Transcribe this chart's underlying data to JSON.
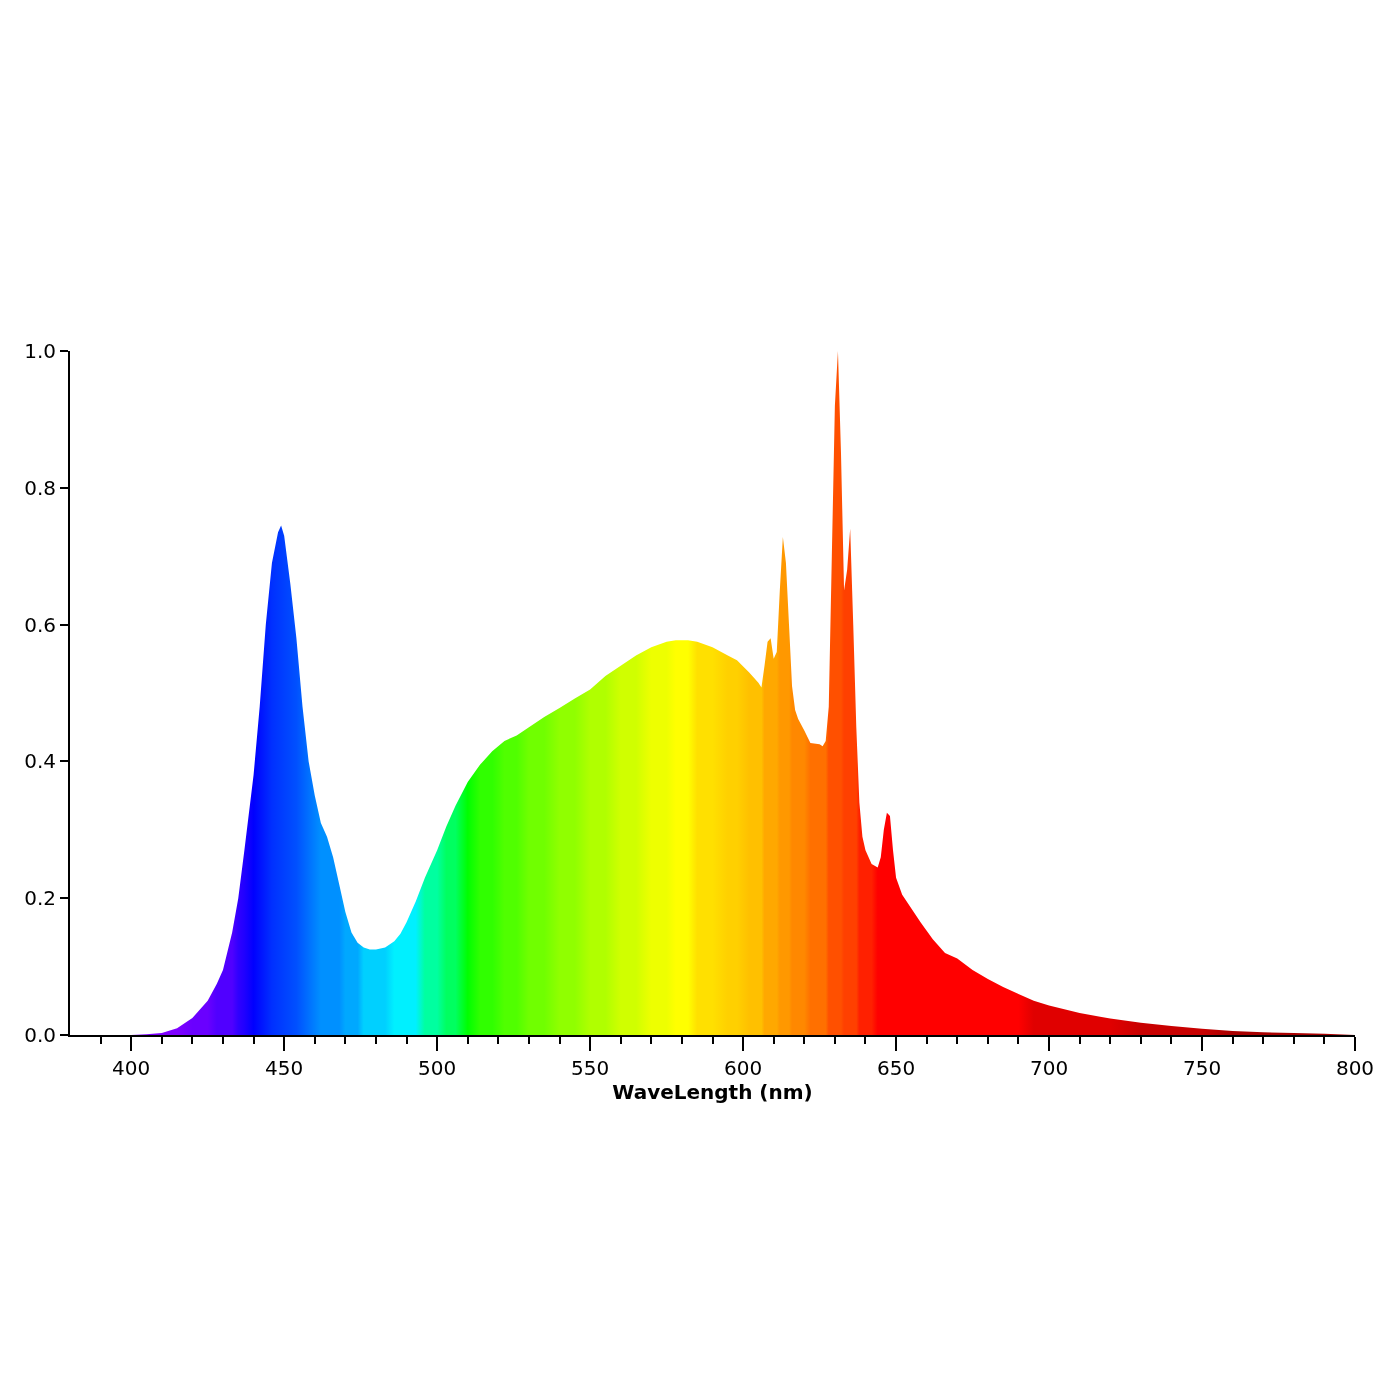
{
  "chart_data": {
    "type": "area",
    "xlabel": "WaveLength (nm)",
    "series": [
      {
        "x": [
          380,
          400,
          405,
          410,
          415,
          420,
          425,
          428,
          430,
          433,
          435,
          437,
          440,
          442,
          444,
          446,
          448,
          449,
          450,
          452,
          454,
          456,
          458,
          460,
          462,
          464,
          466,
          468,
          470,
          472,
          474,
          476,
          478,
          480,
          483,
          486,
          488,
          490,
          493,
          496,
          500,
          503,
          506,
          510,
          514,
          518,
          522,
          526,
          530,
          535,
          540,
          545,
          550,
          555,
          560,
          565,
          570,
          575,
          578,
          582,
          585,
          590,
          595,
          598,
          602,
          605,
          606,
          607,
          608,
          609,
          610,
          611,
          612,
          613,
          614,
          615,
          616,
          617,
          618,
          620,
          622,
          625,
          626,
          627,
          628,
          629,
          630,
          631,
          632,
          633,
          634,
          635,
          636,
          637,
          638,
          639,
          640,
          642,
          644,
          645,
          646,
          647,
          648,
          649,
          650,
          652,
          655,
          658,
          662,
          666,
          670,
          675,
          680,
          685,
          690,
          695,
          700,
          710,
          720,
          730,
          740,
          750,
          760,
          770,
          780,
          790,
          800
        ],
        "values": [
          0,
          0,
          0.001,
          0.003,
          0.01,
          0.025,
          0.05,
          0.075,
          0.095,
          0.15,
          0.2,
          0.27,
          0.38,
          0.48,
          0.6,
          0.69,
          0.735,
          0.745,
          0.73,
          0.66,
          0.58,
          0.48,
          0.4,
          0.35,
          0.31,
          0.29,
          0.26,
          0.22,
          0.18,
          0.15,
          0.135,
          0.128,
          0.125,
          0.125,
          0.128,
          0.137,
          0.148,
          0.165,
          0.195,
          0.23,
          0.27,
          0.305,
          0.335,
          0.37,
          0.395,
          0.415,
          0.43,
          0.438,
          0.45,
          0.465,
          0.478,
          0.492,
          0.505,
          0.525,
          0.54,
          0.555,
          0.567,
          0.575,
          0.577,
          0.577,
          0.575,
          0.567,
          0.555,
          0.548,
          0.53,
          0.515,
          0.508,
          0.54,
          0.575,
          0.58,
          0.55,
          0.56,
          0.65,
          0.728,
          0.69,
          0.6,
          0.51,
          0.475,
          0.462,
          0.445,
          0.427,
          0.425,
          0.422,
          0.43,
          0.48,
          0.7,
          0.92,
          1.0,
          0.85,
          0.65,
          0.68,
          0.74,
          0.6,
          0.45,
          0.34,
          0.29,
          0.27,
          0.25,
          0.245,
          0.26,
          0.3,
          0.325,
          0.32,
          0.27,
          0.23,
          0.205,
          0.185,
          0.165,
          0.14,
          0.12,
          0.112,
          0.095,
          0.082,
          0.07,
          0.06,
          0.05,
          0.043,
          0.032,
          0.024,
          0.018,
          0.013,
          0.009,
          0.006,
          0.004,
          0.003,
          0.002,
          0
        ],
        "colors": [
          "#7f00ff",
          "#7f00ff",
          "#7f00ff",
          "#7f00ff",
          "#7f00ff",
          "#6a00ff",
          "#6a00ff",
          "#5000ff",
          "#5000ff",
          "#5000ff",
          "#3000ff",
          "#2000ff",
          "#0000ff",
          "#0010ff",
          "#0020ff",
          "#0030ff",
          "#0038ff",
          "#003cff",
          "#0040ff",
          "#0048ff",
          "#0050ff",
          "#0060ff",
          "#0070ff",
          "#0080ff",
          "#0090ff",
          "#0090ff",
          "#0090ff",
          "#0090ff",
          "#00a8ff",
          "#00a8ff",
          "#00a8ff",
          "#00d0ff",
          "#00d0ff",
          "#00d0ff",
          "#00d0ff",
          "#00f0ff",
          "#00f0ff",
          "#00f0ff",
          "#00f0ff",
          "#00ffa0",
          "#00ffa0",
          "#00ff60",
          "#00ff60",
          "#00ff00",
          "#30ff00",
          "#30ff00",
          "#50ff00",
          "#50ff00",
          "#70ff00",
          "#70ff00",
          "#90ff00",
          "#90ff00",
          "#b0ff00",
          "#b0ff00",
          "#d0ff00",
          "#d0ff00",
          "#eeff00",
          "#eeff00",
          "#ffff00",
          "#ffff00",
          "#ffe000",
          "#ffe000",
          "#ffd000",
          "#ffd000",
          "#ffc000",
          "#ffc000",
          "#ffc000",
          "#ffa800",
          "#ffa800",
          "#ffa800",
          "#ffa800",
          "#ffa800",
          "#ff9800",
          "#ff9800",
          "#ff9800",
          "#ff9800",
          "#ff8800",
          "#ff8800",
          "#ff8800",
          "#ff8800",
          "#ff7000",
          "#ff7000",
          "#ff7000",
          "#ff7000",
          "#ff5000",
          "#ff5000",
          "#ff5000",
          "#ff5000",
          "#ff5000",
          "#ff4000",
          "#ff4000",
          "#ff4000",
          "#ff4000",
          "#ff4000",
          "#ff2000",
          "#ff2000",
          "#ff2000",
          "#ff2000",
          "#ff0000",
          "#ff0000",
          "#ff0000",
          "#ff0000",
          "#ff0000",
          "#ff0000",
          "#ff0000",
          "#ff0000",
          "#ff0000",
          "#ff0000",
          "#ff0000",
          "#ff0000",
          "#ff0000",
          "#ff0000",
          "#ff0000",
          "#ff0000",
          "#ff0000",
          "#e00000",
          "#e00000",
          "#e00000",
          "#e00000",
          "#c80000",
          "#c80000",
          "#c80000",
          "#a80000",
          "#a80000",
          "#a80000",
          "#a80000",
          "#a80000"
        ]
      }
    ],
    "xlim": [
      380,
      800
    ],
    "xticks": [
      {
        "value": 390,
        "label": null
      },
      400,
      {
        "value": 410,
        "label": null
      },
      {
        "value": 420,
        "label": null
      },
      {
        "value": 430,
        "label": null
      },
      {
        "value": 440,
        "label": null
      },
      450,
      {
        "value": 460,
        "label": null
      },
      {
        "value": 470,
        "label": null
      },
      {
        "value": 480,
        "label": null
      },
      {
        "value": 490,
        "label": null
      },
      500,
      {
        "value": 510,
        "label": null
      },
      {
        "value": 520,
        "label": null
      },
      {
        "value": 530,
        "label": null
      },
      {
        "value": 540,
        "label": null
      },
      550,
      {
        "value": 560,
        "label": null
      },
      {
        "value": 570,
        "label": null
      },
      {
        "value": 580,
        "label": null
      },
      {
        "value": 590,
        "label": null
      },
      600,
      {
        "value": 610,
        "label": null
      },
      {
        "value": 620,
        "label": null
      },
      {
        "value": 630,
        "label": null
      },
      {
        "value": 640,
        "label": null
      },
      650,
      {
        "value": 660,
        "label": null
      },
      {
        "value": 670,
        "label": null
      },
      {
        "value": 680,
        "label": null
      },
      {
        "value": 690,
        "label": null
      },
      700,
      {
        "value": 710,
        "label": null
      },
      {
        "value": 720,
        "label": null
      },
      {
        "value": 730,
        "label": null
      },
      {
        "value": 740,
        "label": null
      },
      750,
      {
        "value": 760,
        "label": null
      },
      {
        "value": 770,
        "label": null
      },
      {
        "value": 780,
        "label": null
      },
      {
        "value": 790,
        "label": null
      },
      800
    ],
    "ylim": [
      0,
      1
    ],
    "yticks": [
      {
        "value": 0,
        "label": "0.0"
      },
      {
        "value": 0.2,
        "label": "0.2"
      },
      {
        "value": 0.4,
        "label": "0.4"
      },
      {
        "value": 0.6,
        "label": "0.6"
      },
      {
        "value": 0.8,
        "label": "0.8"
      },
      {
        "value": 1,
        "label": "1.0"
      }
    ]
  }
}
